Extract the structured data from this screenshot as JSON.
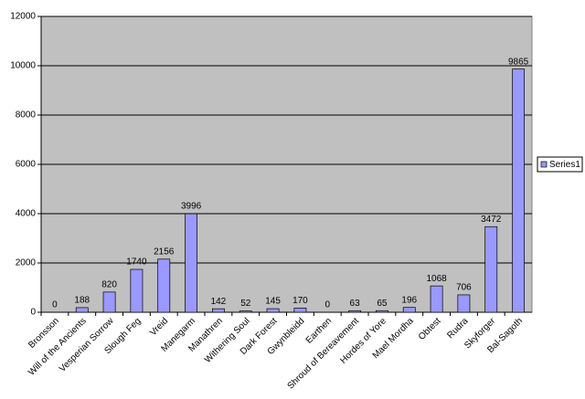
{
  "chart_data": {
    "type": "bar",
    "categories": [
      "Bronsson",
      "Will of the Ancients",
      "Vesperian Sorrow",
      "Slough Feg",
      "Vreid",
      "Manegarm",
      "Manathren",
      "Withering Soul",
      "Dark Forest",
      "Gwynbleidd",
      "Earthen",
      "Shroud of Bereavement",
      "Hordes of Yore",
      "Mael Mordha",
      "Obtest",
      "Rudra",
      "Skyforger",
      "Bal-Sagoth"
    ],
    "series": [
      {
        "name": "Series1",
        "color": "#9999ff",
        "values": [
          0,
          188,
          820,
          1740,
          2156,
          3996,
          142,
          52,
          145,
          170,
          0,
          63,
          65,
          196,
          1068,
          706,
          3472,
          9865
        ]
      }
    ],
    "ylim": [
      0,
      12000
    ],
    "yticks": [
      0,
      2000,
      4000,
      6000,
      8000,
      10000,
      12000
    ],
    "grid": true,
    "legend": "right"
  }
}
